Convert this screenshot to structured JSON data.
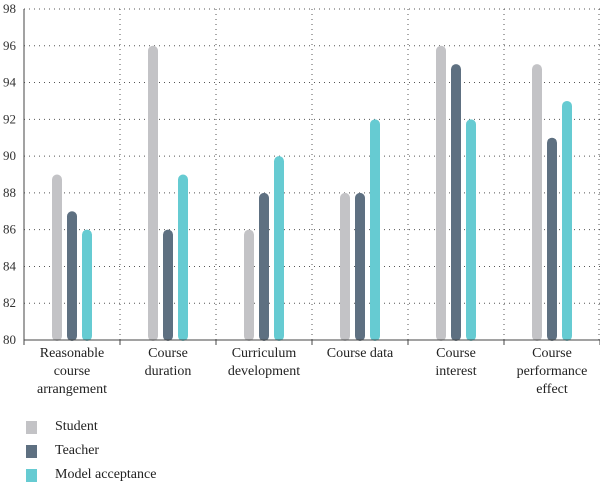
{
  "chart_data": {
    "type": "bar",
    "categories": [
      [
        "Reasonable",
        "course",
        "arrangement"
      ],
      [
        "Course",
        "duration"
      ],
      [
        "Curriculum",
        "development"
      ],
      [
        "Course data"
      ],
      [
        "Course",
        "interest"
      ],
      [
        "Course",
        "performance",
        "effect"
      ]
    ],
    "series": [
      {
        "name": "Student",
        "color": "#c3c3c6",
        "values": [
          89,
          96,
          86,
          88,
          96,
          95
        ]
      },
      {
        "name": "Teacher",
        "color": "#5e7081",
        "values": [
          87,
          86,
          88,
          88,
          95,
          91
        ]
      },
      {
        "name": "Model acceptance",
        "color": "#66cbd2",
        "values": [
          86,
          89,
          90,
          92,
          92,
          93
        ]
      }
    ],
    "ylim": [
      80,
      98
    ],
    "yticks": [
      80,
      82,
      84,
      86,
      88,
      90,
      92,
      94,
      96,
      98
    ],
    "grid": "dotted",
    "legend_position": "bottom-left"
  }
}
